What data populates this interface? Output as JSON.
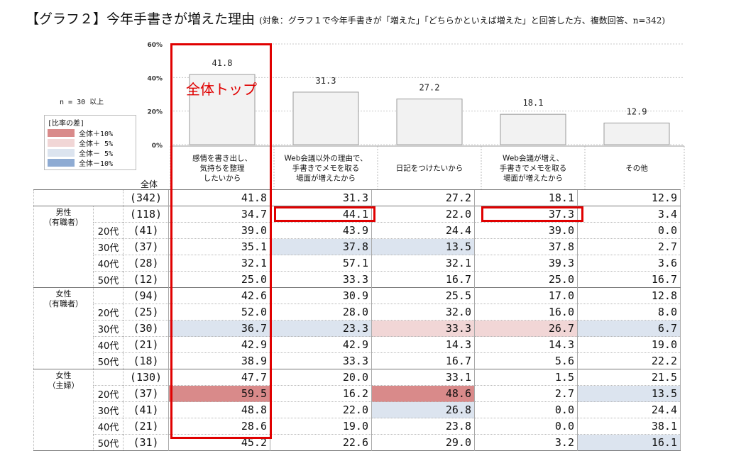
{
  "title": {
    "main": "【グラフ２】今年手書きが増えた理由",
    "sub": "(対象：グラフ１で今年手書きが「増えた」「どちらかといえば増えた」と回答した方、複数回答、n=342)"
  },
  "legend": {
    "n_note": "n = 30 以上",
    "title": "[比率の差]",
    "items": [
      {
        "label": "全体＋10%",
        "color": "#d98a8a"
      },
      {
        "label": "全体＋ 5%",
        "color": "#f1d6d6"
      },
      {
        "label": "全体－ 5%",
        "color": "#dce4ef"
      },
      {
        "label": "全体－10%",
        "color": "#8eabd3"
      }
    ]
  },
  "annotation": "全体トップ",
  "total_label": "全体",
  "colors": {
    "highlight": "#e00000",
    "bar_fill": "#f2f2f2",
    "bar_stroke": "#9a9a9a"
  },
  "chart_data": {
    "type": "bar",
    "categories": [
      "感情を書き出し、\n気持ちを整理\nしたいから",
      "Web会議以外の理由で、\n手書きでメモを取る\n場面が増えたから",
      "日記をつけたいから",
      "Web会議が増え、\n手書きでメモを取る\n場面が増えたから",
      "その他"
    ],
    "values": [
      41.8,
      31.3,
      27.2,
      18.1,
      12.9
    ],
    "value_labels": [
      "41.8",
      "31.3",
      "27.2",
      "18.1",
      "12.9"
    ],
    "yticks": [
      "60%",
      "40%",
      "20%",
      "0%"
    ],
    "ylim": [
      0,
      60
    ],
    "grid": true
  },
  "table": {
    "rows": [
      {
        "group": "",
        "age": "",
        "n": "(342)",
        "values": [
          "41.8",
          "31.3",
          "27.2",
          "18.1",
          "12.9"
        ],
        "shade": [
          "",
          "",
          "",
          "",
          ""
        ]
      },
      {
        "group": "男性\n（有職者）",
        "age": "",
        "n": "(118)",
        "values": [
          "34.7",
          "44.1",
          "22.0",
          "37.3",
          "3.4"
        ],
        "shade": [
          "",
          "",
          "",
          "",
          ""
        ],
        "gstart": true
      },
      {
        "group": "",
        "age": "20代",
        "n": "(41)",
        "values": [
          "39.0",
          "43.9",
          "24.4",
          "39.0",
          "0.0"
        ],
        "shade": [
          "",
          "",
          "",
          "",
          ""
        ]
      },
      {
        "group": "",
        "age": "30代",
        "n": "(37)",
        "values": [
          "35.1",
          "37.8",
          "13.5",
          "37.8",
          "2.7"
        ],
        "shade": [
          "",
          "m5",
          "m5",
          "",
          ""
        ]
      },
      {
        "group": "",
        "age": "40代",
        "n": "(28)",
        "values": [
          "32.1",
          "57.1",
          "32.1",
          "39.3",
          "3.6"
        ],
        "shade": [
          "",
          "",
          "",
          "",
          ""
        ]
      },
      {
        "group": "",
        "age": "50代",
        "n": "(12)",
        "values": [
          "25.0",
          "33.3",
          "16.7",
          "25.0",
          "16.7"
        ],
        "shade": [
          "",
          "",
          "",
          "",
          ""
        ]
      },
      {
        "group": "女性\n（有職者）",
        "age": "",
        "n": "(94)",
        "values": [
          "42.6",
          "30.9",
          "25.5",
          "17.0",
          "12.8"
        ],
        "shade": [
          "",
          "",
          "",
          "",
          ""
        ],
        "gstart": true
      },
      {
        "group": "",
        "age": "20代",
        "n": "(25)",
        "values": [
          "52.0",
          "28.0",
          "32.0",
          "16.0",
          "8.0"
        ],
        "shade": [
          "",
          "",
          "",
          "",
          ""
        ]
      },
      {
        "group": "",
        "age": "30代",
        "n": "(30)",
        "values": [
          "36.7",
          "23.3",
          "33.3",
          "26.7",
          "6.7"
        ],
        "shade": [
          "m5",
          "m5",
          "p5",
          "p5",
          "m5"
        ]
      },
      {
        "group": "",
        "age": "40代",
        "n": "(21)",
        "values": [
          "42.9",
          "42.9",
          "14.3",
          "14.3",
          "19.0"
        ],
        "shade": [
          "",
          "",
          "",
          "",
          ""
        ]
      },
      {
        "group": "",
        "age": "50代",
        "n": "(18)",
        "values": [
          "38.9",
          "33.3",
          "16.7",
          "5.6",
          "22.2"
        ],
        "shade": [
          "",
          "",
          "",
          "",
          ""
        ]
      },
      {
        "group": "女性\n（主婦）",
        "age": "",
        "n": "(130)",
        "values": [
          "47.7",
          "20.0",
          "33.1",
          "1.5",
          "21.5"
        ],
        "shade": [
          "",
          "",
          "",
          "",
          ""
        ],
        "gstart": true
      },
      {
        "group": "",
        "age": "20代",
        "n": "(37)",
        "values": [
          "59.5",
          "16.2",
          "48.6",
          "2.7",
          "13.5"
        ],
        "shade": [
          "p10",
          "",
          "p10",
          "",
          "m5"
        ]
      },
      {
        "group": "",
        "age": "30代",
        "n": "(41)",
        "values": [
          "48.8",
          "22.0",
          "26.8",
          "0.0",
          "24.4"
        ],
        "shade": [
          "",
          "",
          "m5",
          "",
          ""
        ]
      },
      {
        "group": "",
        "age": "40代",
        "n": "(21)",
        "values": [
          "28.6",
          "19.0",
          "23.8",
          "0.0",
          "38.1"
        ],
        "shade": [
          "",
          "",
          "",
          "",
          ""
        ]
      },
      {
        "group": "",
        "age": "50代",
        "n": "(31)",
        "values": [
          "45.2",
          "22.6",
          "29.0",
          "3.2",
          "16.1"
        ],
        "shade": [
          "",
          "",
          "",
          "",
          "m5"
        ]
      }
    ],
    "shade_colors": {
      "p10": "#d98a8a",
      "p5": "#f1d6d6",
      "m5": "#dce4ef",
      "m10": "#8eabd3"
    }
  }
}
